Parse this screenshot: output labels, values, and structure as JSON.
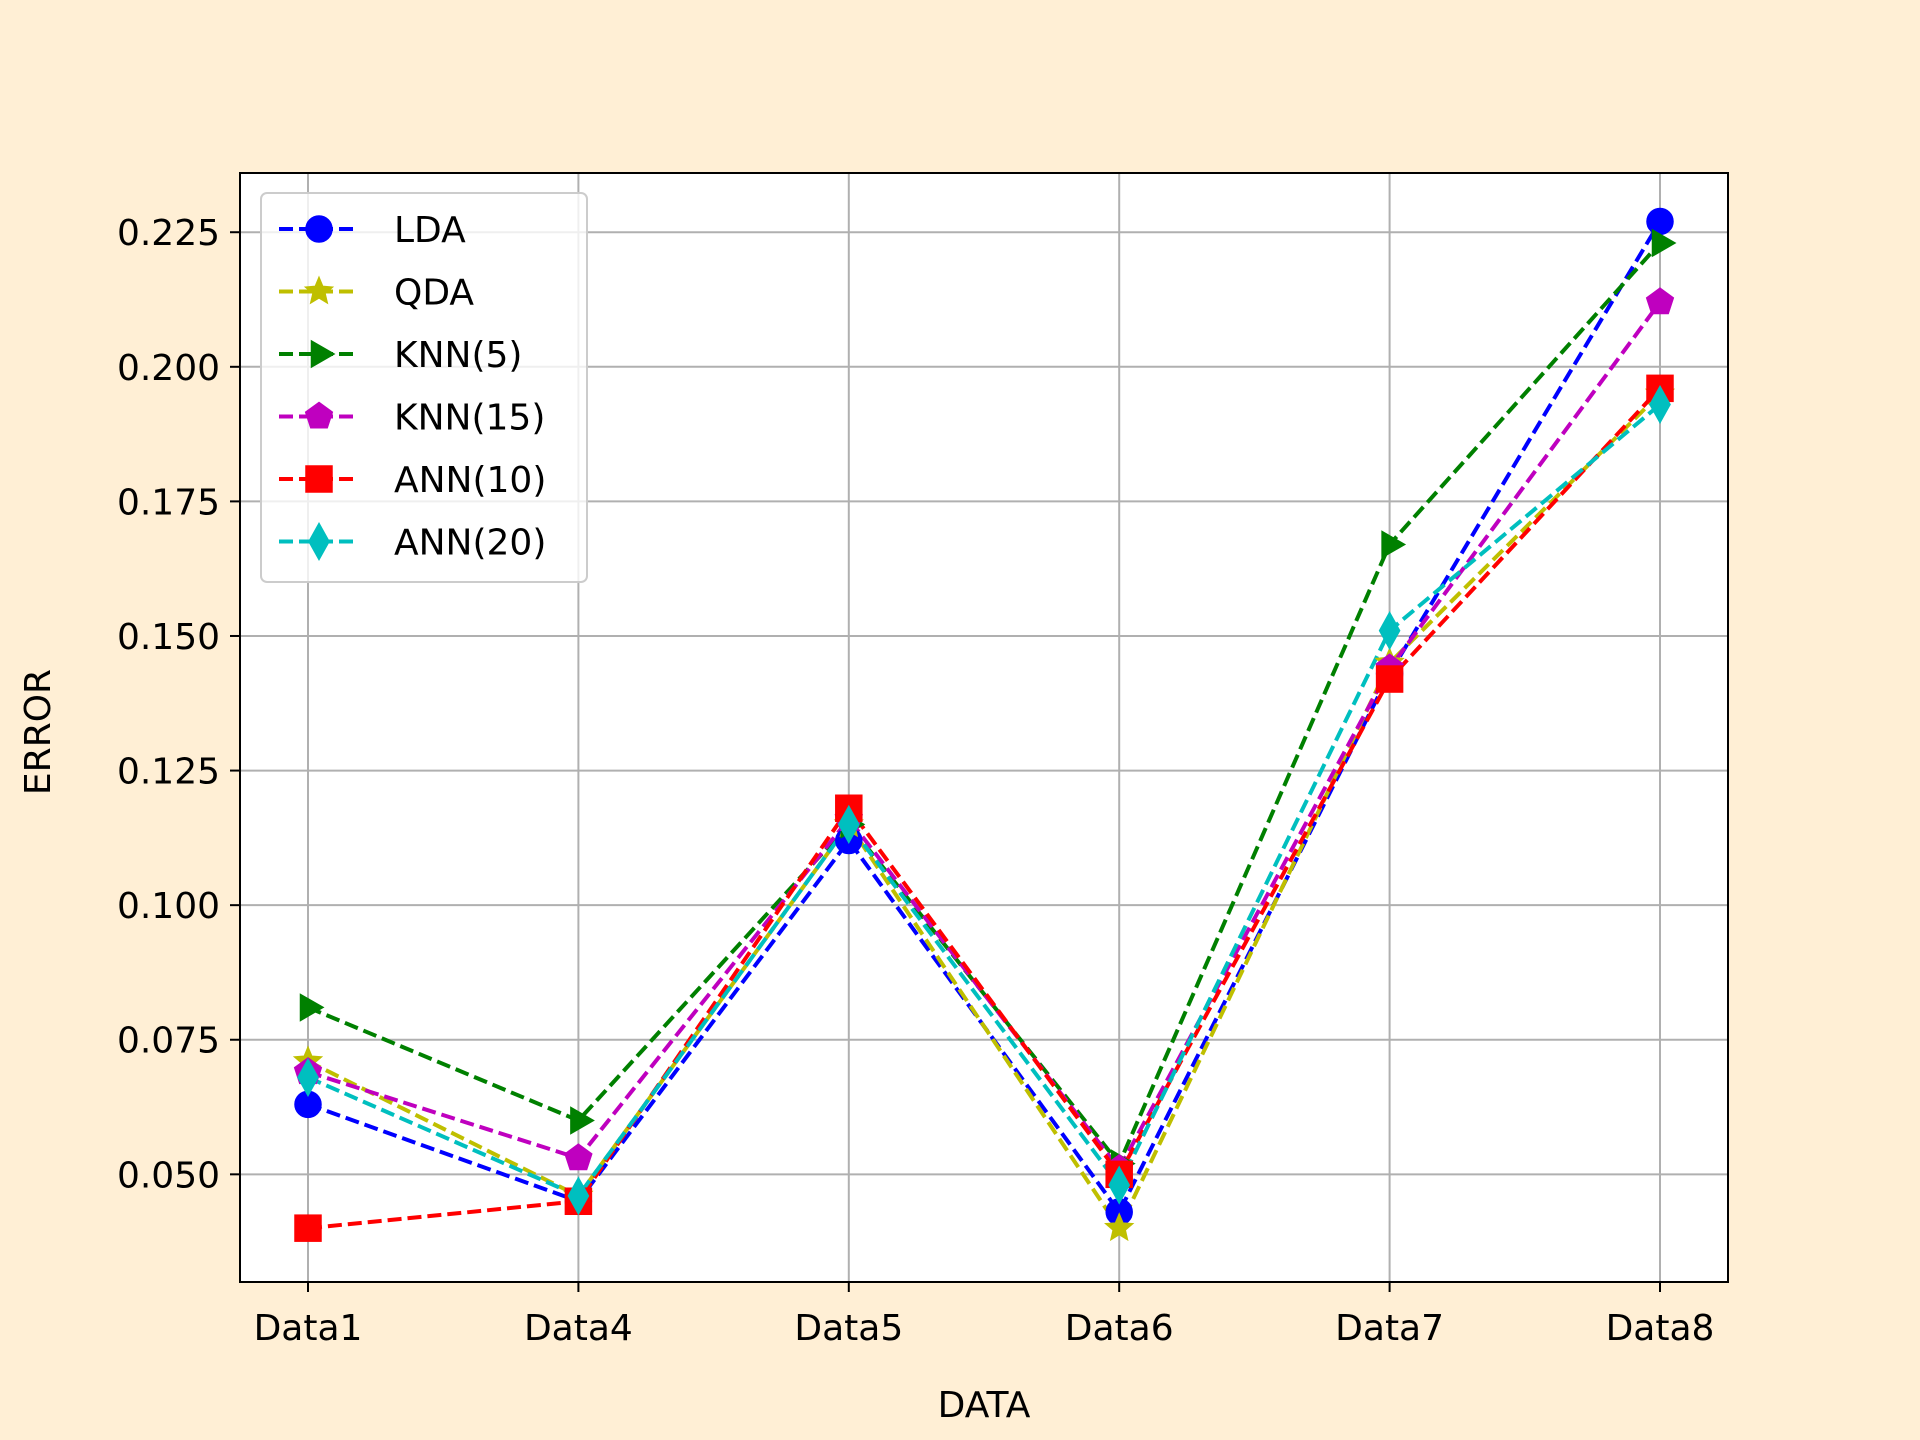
{
  "chart_data": {
    "type": "line",
    "xlabel": "DATA",
    "ylabel": "ERROR",
    "categories": [
      "Data1",
      "Data4",
      "Data5",
      "Data6",
      "Data7",
      "Data8"
    ],
    "ylim": [
      0.03,
      0.236
    ],
    "yticks": [
      "0.050",
      "0.075",
      "0.100",
      "0.125",
      "0.150",
      "0.175",
      "0.200",
      "0.225"
    ],
    "grid": true,
    "legend_position": "top-left",
    "series": [
      {
        "name": "LDA",
        "color": "#0000ff",
        "marker": "circle",
        "values": [
          0.063,
          0.045,
          0.112,
          0.043,
          0.143,
          0.227
        ]
      },
      {
        "name": "QDA",
        "color": "#bfbf00",
        "marker": "star",
        "values": [
          0.071,
          0.046,
          0.115,
          0.04,
          0.145,
          0.195
        ]
      },
      {
        "name": "KNN(5)",
        "color": "#008000",
        "marker": "triangle-right",
        "values": [
          0.081,
          0.06,
          0.115,
          0.052,
          0.167,
          0.223
        ]
      },
      {
        "name": "KNN(15)",
        "color": "#bf00bf",
        "marker": "pentagon",
        "values": [
          0.069,
          0.053,
          0.116,
          0.051,
          0.144,
          0.212
        ]
      },
      {
        "name": "ANN(10)",
        "color": "#ff0000",
        "marker": "square",
        "values": [
          0.04,
          0.045,
          0.118,
          0.05,
          0.142,
          0.196
        ]
      },
      {
        "name": "ANN(20)",
        "color": "#00bfbf",
        "marker": "diamond",
        "values": [
          0.068,
          0.046,
          0.115,
          0.048,
          0.151,
          0.193
        ]
      }
    ]
  }
}
